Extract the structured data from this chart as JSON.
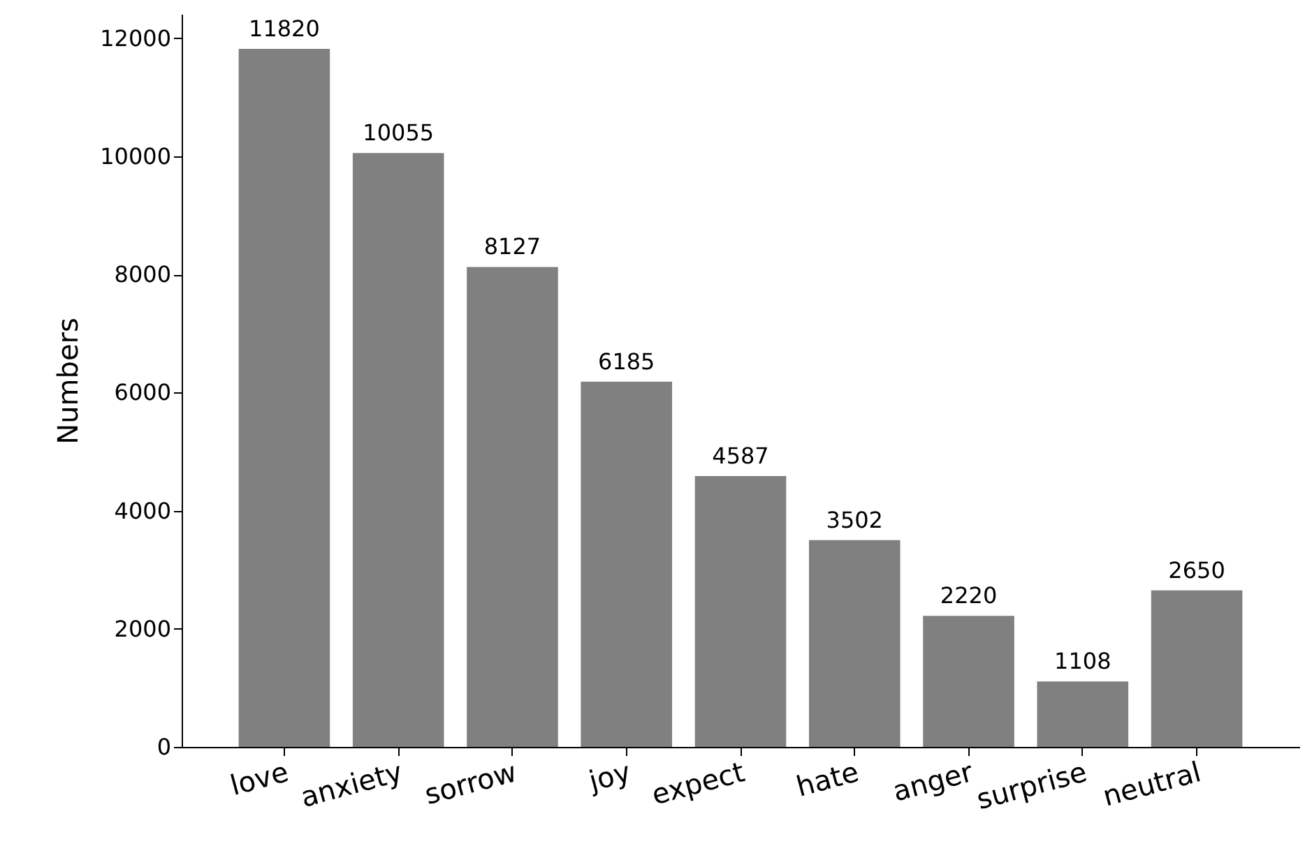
{
  "chart_data": {
    "type": "bar",
    "ylabel": "Numbers",
    "categories": [
      "love",
      "anxiety",
      "sorrow",
      "joy",
      "expect",
      "hate",
      "anger",
      "surprise",
      "neutral"
    ],
    "values": [
      11820,
      10055,
      8127,
      6185,
      4587,
      3502,
      2220,
      1108,
      2650
    ],
    "color": "#808080",
    "ylim": [
      0,
      12411
    ],
    "yticks": [
      0,
      2000,
      4000,
      6000,
      8000,
      10000,
      12000
    ],
    "grid": false,
    "data_labels": true
  }
}
